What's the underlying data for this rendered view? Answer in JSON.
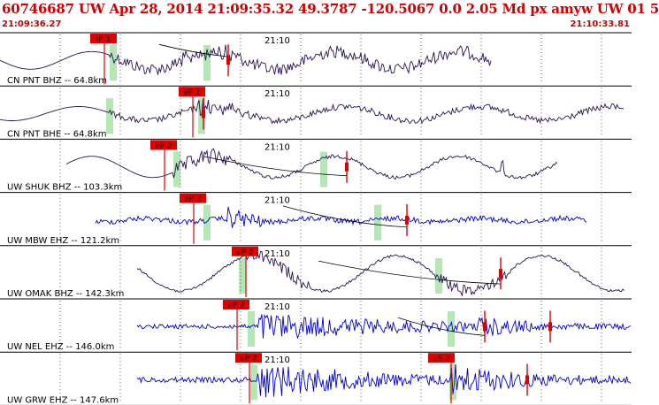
{
  "header": {
    "title": "60746687 UW Apr 28, 2014 21:09:35.32    49.3787 -120.5067   0.0 2.05 Md px amyw UW 01    5",
    "time_start": "21:09:36.27",
    "time_end": "21:10:33.81"
  },
  "time_tick_label": "21:10",
  "colors": {
    "header_text": "#d10000",
    "trace_dark": "#2b1155",
    "trace_blue": "#0000e0",
    "pick_box": "#e00000",
    "pick_line": "#e00000",
    "marker_green": "#b5e6b5",
    "grid": "#000000",
    "curve": "#000000"
  },
  "traces": [
    {
      "label": "CN PNT BHZ -- 64.8km",
      "pick_label": "iP 1",
      "color": "dark"
    },
    {
      "label": "CN PNT BHE -- 64.8km",
      "pick_label": "eP 1",
      "color": "dark"
    },
    {
      "label": "UW SHUK BHZ -- 103.3km",
      "pick_label": "eP 2",
      "color": "dark"
    },
    {
      "label": "UW MBW EHZ -- 121.2km",
      "pick_label": "eP 2",
      "color": "blue"
    },
    {
      "label": "UW OMAK BHZ -- 142.3km",
      "pick_label": "eP 2",
      "color": "dark"
    },
    {
      "label": "UW NEL EHZ -- 146.0km",
      "pick_label": "eP 2",
      "color": "blue"
    },
    {
      "label": "UW GRW EHZ -- 147.6km",
      "pick_label": "eP 2",
      "extra_pick_label": "eS 2",
      "color": "blue"
    }
  ]
}
